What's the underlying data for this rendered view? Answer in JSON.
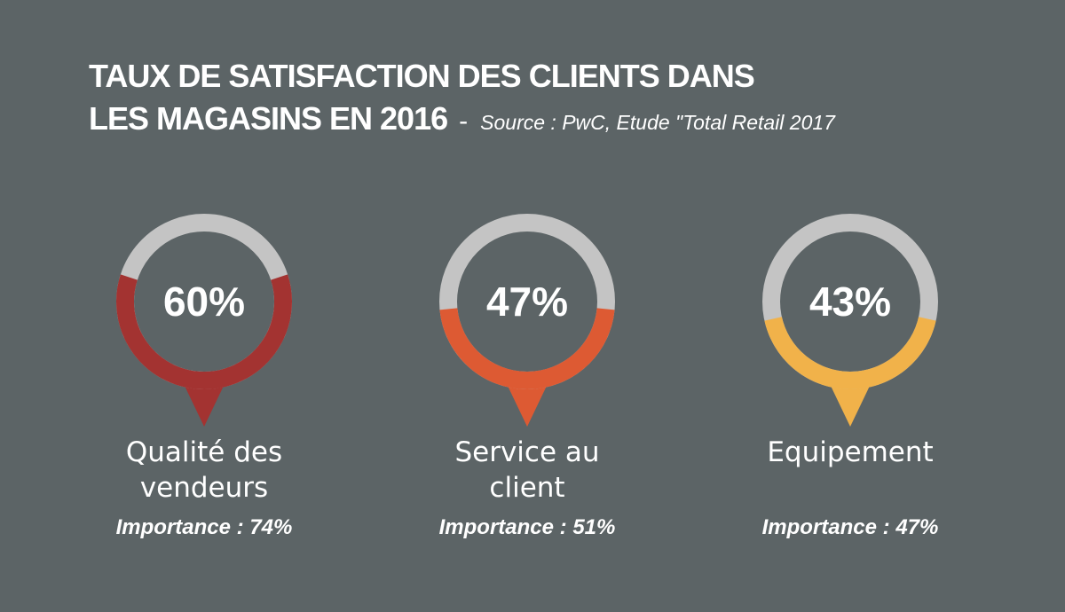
{
  "header": {
    "title_line1": "TAUX DE SATISFACTION DES CLIENTS DANS",
    "title_line2": "LES MAGASINS EN 2016",
    "separator": "-",
    "source": "Source : PwC, Etude \"Total Retail 2017"
  },
  "chart_data": {
    "type": "gauge",
    "title": "TAUX DE SATISFACTION DES CLIENTS DANS LES MAGASINS EN 2016",
    "source": "Source : PwC, Etude \"Total Retail 2017",
    "track_color": "#c4c4c4",
    "items": [
      {
        "category_line1": "Qualité des",
        "category_line2": "vendeurs",
        "value": 60,
        "value_label": "60%",
        "importance_label": "Importance : 74%",
        "color": "#a33331"
      },
      {
        "category_line1": "Service au",
        "category_line2": "client",
        "value": 47,
        "value_label": "47%",
        "importance_label": "Importance : 51%",
        "color": "#dd5a33"
      },
      {
        "category_line1": "Equipement",
        "category_line2": "",
        "value": 43,
        "value_label": "43%",
        "importance_label": "Importance : 47%",
        "color": "#f1b24a"
      }
    ]
  }
}
